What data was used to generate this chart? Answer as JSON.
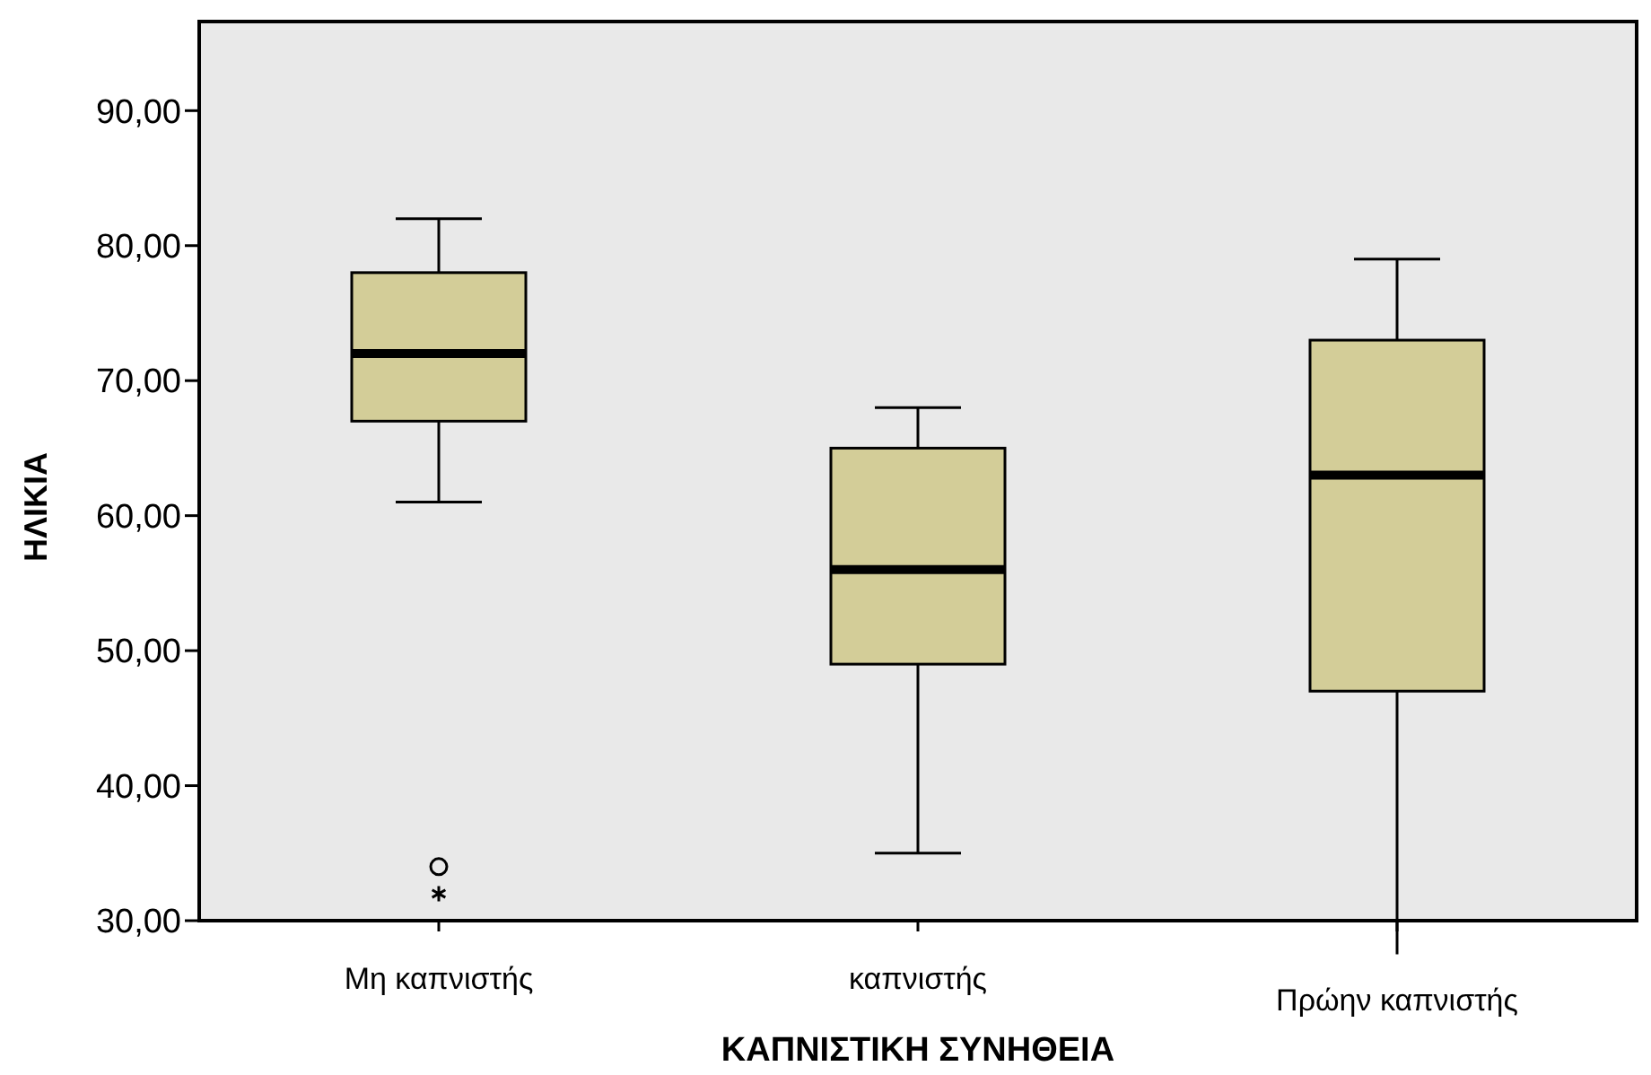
{
  "chart_data": {
    "type": "box",
    "xlabel": "ΚΑΠΝΙΣΤΙΚΗ ΣΥΝΗΘΕΙΑ",
    "ylabel": "ΗΛΙΚΙΑ",
    "categories": [
      "Μη καπνιστής",
      "καπνιστής",
      "Πρώην καπνιστής"
    ],
    "color": "#d3cd98",
    "boxes": [
      {
        "low": 61,
        "q1": 67,
        "median": 72,
        "q3": 78,
        "high": 82,
        "outliers": [
          34,
          32
        ]
      },
      {
        "low": 35,
        "q1": 49,
        "median": 56,
        "q3": 65,
        "high": 68
      },
      {
        "low": 27.5,
        "q1": 47,
        "median": 63,
        "q3": 73,
        "high": 79
      }
    ],
    "ylim": [
      30,
      96.6
    ],
    "yticks": [
      {
        "value": 30,
        "label": "30,00"
      },
      {
        "value": 40,
        "label": "40,00"
      },
      {
        "value": 50,
        "label": "50,00"
      },
      {
        "value": 60,
        "label": "60,00"
      },
      {
        "value": 70,
        "label": "70,00"
      },
      {
        "value": 80,
        "label": "80,00"
      },
      {
        "value": 90,
        "label": "90,00"
      }
    ],
    "grid": false
  }
}
